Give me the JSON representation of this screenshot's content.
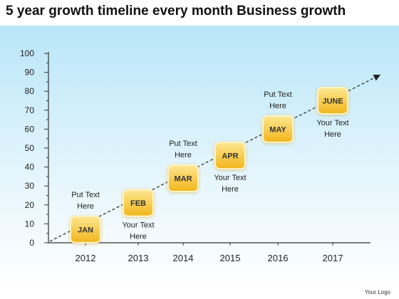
{
  "title": "5 year growth timeline every month Business growth",
  "footer": {
    "logo_text": "Your Logo"
  },
  "y_axis": {
    "ticks": [
      0,
      10,
      20,
      30,
      40,
      50,
      60,
      70,
      80,
      90,
      100
    ]
  },
  "x_axis": {
    "labels": [
      "2012",
      "2013",
      "2014",
      "2015",
      "2016",
      "2017"
    ]
  },
  "milestones": [
    {
      "label": "JAN",
      "level": 7,
      "note": "Put Text Here",
      "note_side": "above"
    },
    {
      "label": "FEB",
      "level": 21,
      "note": "Your Text Here",
      "note_side": "below"
    },
    {
      "label": "MAR",
      "level": 34,
      "note": "Put Text Here",
      "note_side": "above"
    },
    {
      "label": "APR",
      "level": 46,
      "note": "Your Text Here",
      "note_side": "below"
    },
    {
      "label": "MAY",
      "level": 60,
      "note": "Put Text Here",
      "note_side": "above"
    },
    {
      "label": "JUNE",
      "level": 75,
      "note": "Your Text Here",
      "note_side": "below"
    }
  ],
  "colors": {
    "box_fill_top": "#fde792",
    "box_fill_bottom": "#f2b51b",
    "box_border": "#fff4c7",
    "axis": "#333333",
    "trend_line": "#222222"
  }
}
